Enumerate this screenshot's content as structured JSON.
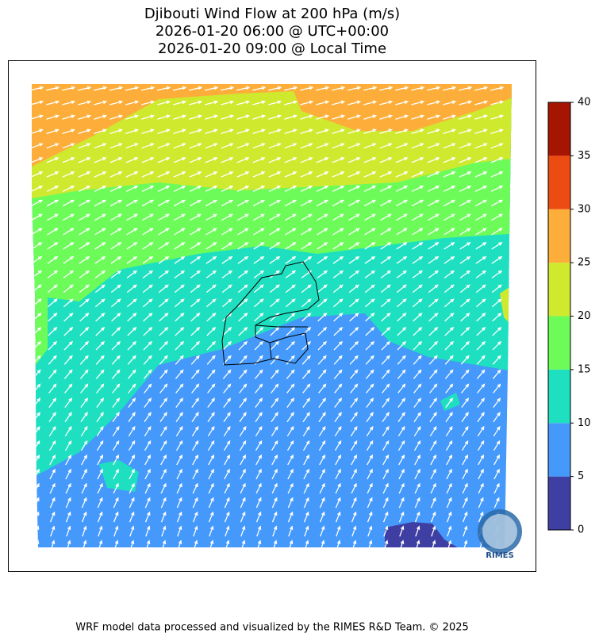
{
  "chart_data": {
    "type": "contour-map",
    "title": [
      "Djibouti Wind Flow at 200 hPa (m/s)",
      "2026-01-20 06:00 @ UTC+00:00",
      "2026-01-20 09:00 @ Local Time"
    ],
    "colorbar": {
      "ticks": [
        0,
        5,
        10,
        15,
        20,
        25,
        30,
        35,
        40
      ],
      "colors": [
        "#3f3fa3",
        "#4499fb",
        "#1ee0c0",
        "#6dfb5a",
        "#cfe92f",
        "#fdae3a",
        "#ec4c11",
        "#a61502"
      ]
    },
    "logo_text": "RIMES",
    "footer": "WRF model data processed and visualized by the RIMES R&D Team. © 2025"
  }
}
